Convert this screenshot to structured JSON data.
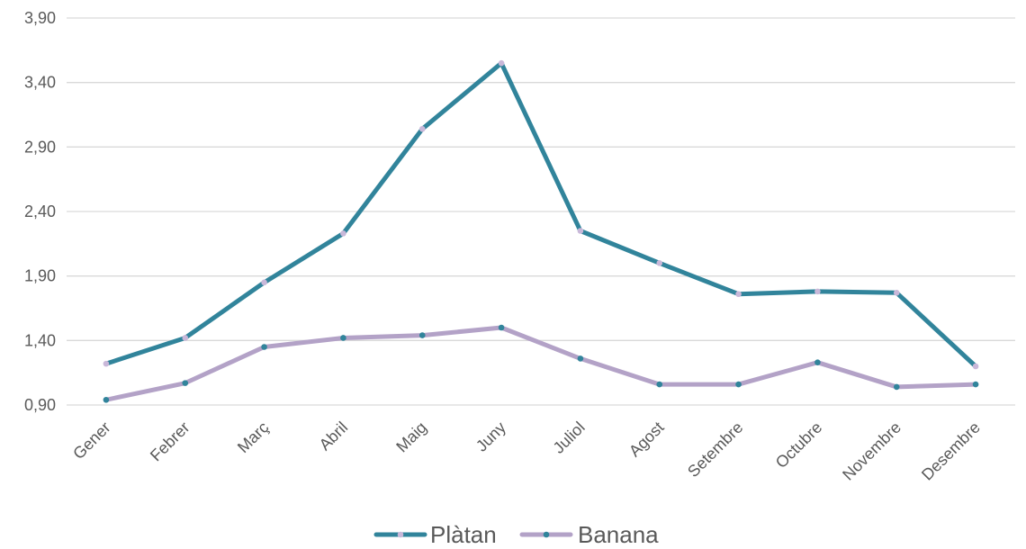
{
  "chart_data": {
    "type": "line",
    "categories": [
      "Gener",
      "Febrer",
      "Març",
      "Abril",
      "Maig",
      "Juny",
      "Juliol",
      "Agost",
      "Setembre",
      "Octubre",
      "Novembre",
      "Desembre"
    ],
    "series": [
      {
        "name": "Plàtan",
        "color": "#31849b",
        "marker_color": "#c9b8d9",
        "values": [
          1.22,
          1.42,
          1.85,
          2.23,
          3.04,
          3.55,
          2.25,
          2.0,
          1.76,
          1.78,
          1.77,
          1.2
        ]
      },
      {
        "name": "Banana",
        "color": "#b3a2c7",
        "marker_color": "#31849b",
        "values": [
          0.94,
          1.07,
          1.35,
          1.42,
          1.44,
          1.5,
          1.26,
          1.06,
          1.06,
          1.23,
          1.04,
          1.06
        ]
      }
    ],
    "y_ticks": [
      "0,90",
      "1,40",
      "1,90",
      "2,40",
      "2,90",
      "3,40",
      "3,90"
    ],
    "ylim": [
      0.9,
      3.9
    ],
    "title": "",
    "xlabel": "",
    "ylabel": "",
    "grid": true,
    "legend_position": "bottom-center"
  }
}
